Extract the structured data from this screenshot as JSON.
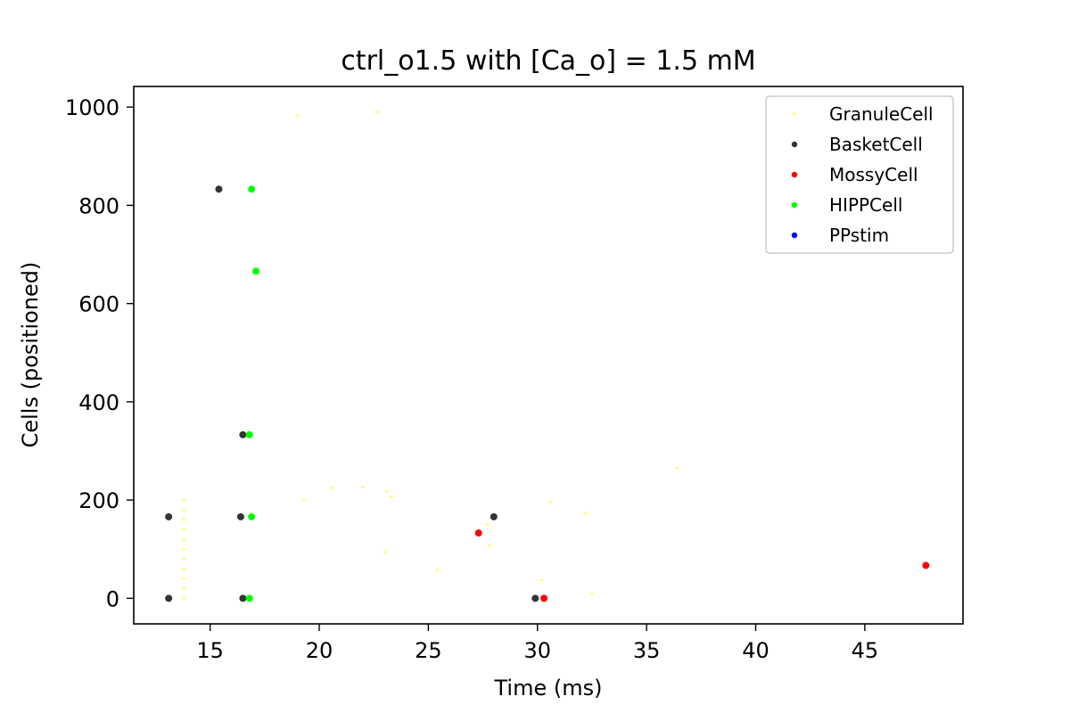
{
  "chart_data": {
    "type": "scatter",
    "title": "ctrl_o1.5 with [Ca_o] = 1.5 mM",
    "xlabel": "Time (ms)",
    "ylabel": "Cells (positioned)",
    "xlim": [
      11.5,
      49.5
    ],
    "ylim": [
      -52,
      1042
    ],
    "xticks": [
      15,
      20,
      25,
      30,
      35,
      40,
      45
    ],
    "yticks": [
      0,
      200,
      400,
      600,
      800,
      1000
    ],
    "grid": false,
    "legend_position": "top-right",
    "series": [
      {
        "name": "GranuleCell",
        "color": "#ffff00",
        "marker_size": "tiny",
        "points": [
          [
            13.8,
            0
          ],
          [
            13.8,
            20
          ],
          [
            13.8,
            40
          ],
          [
            13.8,
            60
          ],
          [
            13.8,
            80
          ],
          [
            13.8,
            100
          ],
          [
            13.8,
            120
          ],
          [
            13.8,
            140
          ],
          [
            13.8,
            160
          ],
          [
            13.8,
            180
          ],
          [
            13.8,
            200
          ],
          [
            19.0,
            983
          ],
          [
            22.7,
            990
          ],
          [
            19.3,
            202
          ],
          [
            20.6,
            225
          ],
          [
            22.0,
            226
          ],
          [
            23.1,
            218
          ],
          [
            23.3,
            207
          ],
          [
            23.0,
            94
          ],
          [
            25.4,
            57
          ],
          [
            27.8,
            108
          ],
          [
            30.2,
            37
          ],
          [
            30.6,
            196
          ],
          [
            32.2,
            174
          ],
          [
            32.5,
            8
          ],
          [
            36.4,
            266
          ],
          [
            27.7,
            150
          ]
        ]
      },
      {
        "name": "BasketCell",
        "color": "#333333",
        "marker_size": "normal",
        "points": [
          [
            13.1,
            166
          ],
          [
            13.1,
            0
          ],
          [
            15.4,
            833
          ],
          [
            16.5,
            333
          ],
          [
            16.4,
            166
          ],
          [
            16.5,
            0
          ],
          [
            28.0,
            166
          ],
          [
            29.9,
            0
          ]
        ]
      },
      {
        "name": "MossyCell",
        "color": "#ff0000",
        "marker_size": "normal",
        "points": [
          [
            27.3,
            133
          ],
          [
            30.3,
            0
          ],
          [
            47.8,
            67
          ]
        ]
      },
      {
        "name": "HIPPCell",
        "color": "#00ff00",
        "marker_size": "normal",
        "points": [
          [
            16.9,
            833
          ],
          [
            17.1,
            666
          ],
          [
            16.8,
            333
          ],
          [
            16.9,
            166
          ],
          [
            16.8,
            0
          ]
        ]
      },
      {
        "name": "PPstim",
        "color": "#0000ff",
        "marker_size": "normal",
        "points": []
      }
    ]
  }
}
